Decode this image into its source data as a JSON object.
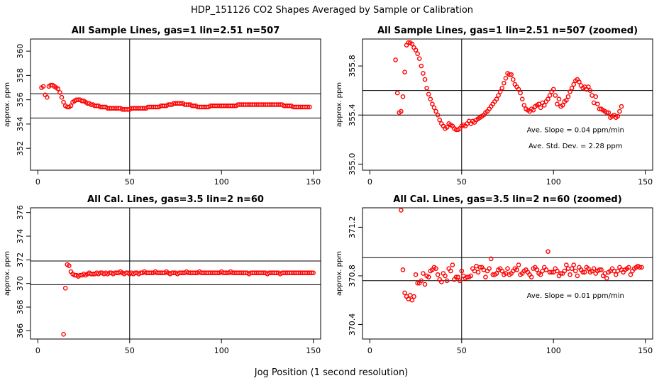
{
  "figure": {
    "title": "HDP_151126  CO2 Shapes Averaged by Sample or Calibration",
    "xlabel": "Jog Position (1 second resolution)"
  },
  "colors": {
    "points": "#ff0000",
    "lines": "#000000",
    "frame": "#000000"
  },
  "chart_data": [
    {
      "type": "scatter",
      "title": "All Sample Lines, gas=1 lin=2.51 n=507",
      "xlabel": "",
      "ylabel": "approx. ppm",
      "xlim": [
        -4,
        154
      ],
      "ylim": [
        350.2,
        361.0
      ],
      "xticks": [
        0,
        50,
        100,
        150
      ],
      "yticks": [
        352,
        354,
        356,
        358,
        360
      ],
      "ytick_labels": [
        "352",
        "354",
        "356",
        "358",
        "360"
      ],
      "hlines": [
        356.5,
        354.5
      ],
      "vline": 50,
      "annotations": [],
      "points_x": [
        2,
        3,
        4,
        5,
        6,
        7,
        8,
        9,
        10,
        11,
        12,
        13,
        14,
        15,
        16,
        17,
        18,
        19,
        20,
        21,
        22,
        23,
        24,
        25,
        26,
        27,
        28,
        29,
        30,
        31,
        32,
        33,
        34,
        35,
        36,
        37,
        38,
        39,
        40,
        41,
        42,
        43,
        44,
        45,
        46,
        47,
        48,
        49,
        50,
        51,
        52,
        53,
        54,
        55,
        56,
        57,
        58,
        59,
        60,
        61,
        62,
        63,
        64,
        65,
        66,
        67,
        68,
        69,
        70,
        71,
        72,
        73,
        74,
        75,
        76,
        77,
        78,
        79,
        80,
        81,
        82,
        83,
        84,
        85,
        86,
        87,
        88,
        89,
        90,
        91,
        92,
        93,
        94,
        95,
        96,
        97,
        98,
        99,
        100,
        101,
        102,
        103,
        104,
        105,
        106,
        107,
        108,
        109,
        110,
        111,
        112,
        113,
        114,
        115,
        116,
        117,
        118,
        119,
        120,
        121,
        122,
        123,
        124,
        125,
        126,
        127,
        128,
        129,
        130,
        131,
        132,
        133,
        134,
        135,
        136,
        137,
        138,
        139,
        140,
        141,
        142,
        143,
        144,
        145,
        146,
        147,
        148,
        149,
        150
      ],
      "points_y": [
        357.0,
        357.1,
        356.4,
        356.2,
        357.1,
        357.2,
        357.2,
        357.1,
        357.0,
        356.9,
        356.6,
        356.2,
        355.8,
        355.5,
        355.4,
        355.4,
        355.5,
        355.8,
        355.9,
        356.0,
        356.0,
        356.0,
        355.9,
        355.9,
        355.8,
        355.7,
        355.7,
        355.6,
        355.6,
        355.5,
        355.5,
        355.5,
        355.4,
        355.4,
        355.4,
        355.4,
        355.3,
        355.3,
        355.3,
        355.3,
        355.3,
        355.3,
        355.3,
        355.3,
        355.2,
        355.2,
        355.2,
        355.2,
        355.2,
        355.3,
        355.3,
        355.3,
        355.3,
        355.3,
        355.3,
        355.3,
        355.3,
        355.3,
        355.4,
        355.4,
        355.4,
        355.4,
        355.4,
        355.4,
        355.4,
        355.5,
        355.5,
        355.5,
        355.5,
        355.6,
        355.6,
        355.6,
        355.7,
        355.7,
        355.7,
        355.7,
        355.7,
        355.7,
        355.6,
        355.6,
        355.6,
        355.6,
        355.5,
        355.5,
        355.5,
        355.4,
        355.4,
        355.4,
        355.4,
        355.4,
        355.4,
        355.4,
        355.5,
        355.5,
        355.5,
        355.5,
        355.5,
        355.5,
        355.5,
        355.5,
        355.5,
        355.5,
        355.5,
        355.5,
        355.5,
        355.5,
        355.5,
        355.6,
        355.6,
        355.6,
        355.6,
        355.6,
        355.6,
        355.6,
        355.6,
        355.6,
        355.6,
        355.6,
        355.6,
        355.6,
        355.6,
        355.6,
        355.6,
        355.6,
        355.6,
        355.6,
        355.6,
        355.6,
        355.6,
        355.6,
        355.6,
        355.6,
        355.5,
        355.5,
        355.5,
        355.5,
        355.5,
        355.4,
        355.4,
        355.4,
        355.4,
        355.4,
        355.4,
        355.4,
        355.4,
        355.4,
        355.4
      ]
    },
    {
      "type": "scatter",
      "title": "All Sample Lines, gas=1 lin=2.51 n=507 (zoomed)",
      "xlabel": "",
      "ylabel": "approx. ppm",
      "xlim": [
        -4,
        154
      ],
      "ylim": [
        354.95,
        356.02
      ],
      "xticks": [
        0,
        50,
        100,
        150
      ],
      "yticks": [
        355.0,
        355.4,
        355.8
      ],
      "ytick_labels": [
        "355.0",
        "355.4",
        "355.8"
      ],
      "hlines": [
        355.6,
        355.4
      ],
      "vline": 50,
      "annotations": [
        {
          "text": "Ave. Slope =  0.04  ppm/min",
          "x": 112,
          "y": 355.26
        },
        {
          "text": "Ave. Std. Dev. =  2.28  ppm",
          "x": 112,
          "y": 355.13
        }
      ],
      "points_x": [
        14,
        15,
        16,
        17,
        18,
        19,
        20,
        21,
        22,
        23,
        24,
        25,
        26,
        27,
        28,
        29,
        30,
        31,
        32,
        33,
        34,
        35,
        36,
        37,
        38,
        39,
        40,
        41,
        42,
        43,
        44,
        45,
        46,
        47,
        48,
        49,
        50,
        51,
        52,
        53,
        54,
        55,
        56,
        57,
        58,
        59,
        60,
        61,
        62,
        63,
        64,
        65,
        66,
        67,
        68,
        69,
        70,
        71,
        72,
        73,
        74,
        75,
        76,
        77,
        78,
        79,
        80,
        81,
        82,
        83,
        84,
        85,
        86,
        87,
        88,
        89,
        90,
        91,
        92,
        93,
        94,
        95,
        96,
        97,
        98,
        99,
        100,
        101,
        102,
        103,
        104,
        105,
        106,
        107,
        108,
        109,
        110,
        111,
        112,
        113,
        114,
        115,
        116,
        117,
        118,
        119,
        120,
        121,
        122,
        123,
        124,
        125,
        126,
        127,
        128,
        129,
        130,
        131,
        132,
        133,
        134,
        135,
        136,
        137,
        138,
        139,
        140,
        141,
        142,
        143,
        144,
        145,
        146,
        147,
        148,
        149,
        150
      ],
      "points_y": [
        355.85,
        355.58,
        355.42,
        355.43,
        355.55,
        355.75,
        355.97,
        355.99,
        355.99,
        355.98,
        355.95,
        355.93,
        355.9,
        355.86,
        355.8,
        355.74,
        355.69,
        355.62,
        355.57,
        355.53,
        355.49,
        355.46,
        355.43,
        355.4,
        355.36,
        355.33,
        355.31,
        355.29,
        355.3,
        355.33,
        355.32,
        355.31,
        355.29,
        355.28,
        355.28,
        355.29,
        355.31,
        355.32,
        355.31,
        355.33,
        355.35,
        355.33,
        355.35,
        355.34,
        355.36,
        355.37,
        355.38,
        355.39,
        355.4,
        355.42,
        355.43,
        355.45,
        355.47,
        355.49,
        355.51,
        355.53,
        355.56,
        355.59,
        355.62,
        355.66,
        355.7,
        355.74,
        355.73,
        355.73,
        355.69,
        355.65,
        355.63,
        355.61,
        355.58,
        355.53,
        355.48,
        355.45,
        355.44,
        355.43,
        355.45,
        355.44,
        355.47,
        355.48,
        355.49,
        355.46,
        355.5,
        355.48,
        355.51,
        355.53,
        355.56,
        355.59,
        355.61,
        355.56,
        355.49,
        355.53,
        355.47,
        355.48,
        355.51,
        355.52,
        355.55,
        355.59,
        355.62,
        355.65,
        355.68,
        355.69,
        355.67,
        355.64,
        355.62,
        355.63,
        355.61,
        355.63,
        355.6,
        355.56,
        355.5,
        355.55,
        355.49,
        355.45,
        355.45,
        355.44,
        355.43,
        355.42,
        355.42,
        355.38,
        355.39,
        355.4,
        355.38,
        355.39,
        355.43,
        355.47
      ]
    },
    {
      "type": "scatter",
      "title": "All Cal. Lines, gas=3.5 lin=2 n=60",
      "xlabel": "",
      "ylabel": "approx. ppm",
      "xlim": [
        -4,
        154
      ],
      "ylim": [
        365.3,
        376.4
      ],
      "xticks": [
        0,
        50,
        100,
        150
      ],
      "yticks": [
        366,
        368,
        370,
        372,
        374,
        376
      ],
      "ytick_labels": [
        "366",
        "368",
        "370",
        "372",
        "374",
        "376"
      ],
      "hlines": [
        371.9,
        369.9
      ],
      "vline": 50,
      "annotations": [],
      "points_x": [
        14,
        15,
        16,
        17,
        18,
        19,
        20,
        21,
        22,
        23,
        24,
        25,
        26,
        27,
        28,
        29,
        30,
        31,
        32,
        33,
        34,
        35,
        36,
        37,
        38,
        39,
        40,
        41,
        42,
        43,
        44,
        45,
        46,
        47,
        48,
        49,
        50,
        51,
        52,
        53,
        54,
        55,
        56,
        57,
        58,
        59,
        60,
        61,
        62,
        63,
        64,
        65,
        66,
        67,
        68,
        69,
        70,
        71,
        72,
        73,
        74,
        75,
        76,
        77,
        78,
        79,
        80,
        81,
        82,
        83,
        84,
        85,
        86,
        87,
        88,
        89,
        90,
        91,
        92,
        93,
        94,
        95,
        96,
        97,
        98,
        99,
        100,
        101,
        102,
        103,
        104,
        105,
        106,
        107,
        108,
        109,
        110,
        111,
        112,
        113,
        114,
        115,
        116,
        117,
        118,
        119,
        120,
        121,
        122,
        123,
        124,
        125,
        126,
        127,
        128,
        129,
        130,
        131,
        132,
        133,
        134,
        135,
        136,
        137,
        138,
        139,
        140,
        141,
        142,
        143,
        144,
        145,
        146,
        147,
        148,
        149,
        150
      ],
      "points_y": [
        365.7,
        369.6,
        371.6,
        371.5,
        371.0,
        370.8,
        370.7,
        370.7,
        370.6,
        370.7,
        370.7,
        370.8,
        370.7,
        370.8,
        370.9,
        370.8,
        370.8,
        370.8,
        370.9,
        370.8,
        370.9,
        370.9,
        370.8,
        370.9,
        370.8,
        370.9,
        370.9,
        370.8,
        370.9,
        370.9,
        370.9,
        371.0,
        370.9,
        370.8,
        370.9,
        370.9,
        370.8,
        370.9,
        370.8,
        370.9,
        370.9,
        370.8,
        370.9,
        370.9,
        371.0,
        370.9,
        370.9,
        370.9,
        370.9,
        370.9,
        371.0,
        370.9,
        370.9,
        370.9,
        370.9,
        370.9,
        371.0,
        370.9,
        370.8,
        370.9,
        370.9,
        370.9,
        370.8,
        370.9,
        370.9,
        370.9,
        370.9,
        371.0,
        370.9,
        370.9,
        370.9,
        370.9,
        370.9,
        370.9,
        371.0,
        370.9,
        370.9,
        370.9,
        370.9,
        370.9,
        370.9,
        370.9,
        370.9,
        370.9,
        370.9,
        370.9,
        371.0,
        370.9,
        370.9,
        370.9,
        370.9,
        371.0,
        370.9,
        370.9,
        370.9,
        370.9,
        370.9,
        370.9,
        370.9,
        370.9,
        370.9,
        370.8,
        370.9,
        370.9,
        370.9,
        370.9,
        370.9,
        370.9,
        370.9,
        370.9,
        370.9,
        370.8,
        370.9,
        370.9,
        370.9,
        370.9,
        370.9,
        370.9,
        370.8,
        370.9,
        370.9,
        370.9,
        370.9,
        370.9,
        370.9,
        370.9,
        370.9,
        370.9,
        370.9,
        370.9,
        370.9,
        370.9,
        370.9,
        370.9,
        370.9,
        370.9,
        370.9
      ]
    },
    {
      "type": "scatter",
      "title": "All Cal. Lines, gas=3.5 lin=2 n=60 (zoomed)",
      "xlabel": "",
      "ylabel": "approx. ppm",
      "xlim": [
        -4,
        154
      ],
      "ylim": [
        370.28,
        371.36
      ],
      "xticks": [
        0,
        50,
        100,
        150
      ],
      "yticks": [
        370.4,
        370.8,
        371.2
      ],
      "ytick_labels": [
        "370.4",
        "370.8",
        "371.2"
      ],
      "hlines": [
        370.95,
        370.76
      ],
      "vline": 50,
      "annotations": [
        {
          "text": "Ave. Slope =  0.01  ppm/min",
          "x": 112,
          "y": 370.62
        }
      ],
      "points_x": [
        17,
        18,
        19,
        20,
        21,
        22,
        23,
        24,
        25,
        26,
        27,
        28,
        29,
        30,
        31,
        32,
        33,
        34,
        35,
        36,
        37,
        38,
        39,
        40,
        41,
        42,
        43,
        44,
        45,
        46,
        47,
        48,
        49,
        50,
        51,
        52,
        53,
        54,
        55,
        56,
        57,
        58,
        59,
        60,
        61,
        62,
        63,
        64,
        65,
        66,
        67,
        68,
        69,
        70,
        71,
        72,
        73,
        74,
        75,
        76,
        77,
        78,
        79,
        80,
        81,
        82,
        83,
        84,
        85,
        86,
        87,
        88,
        89,
        90,
        91,
        92,
        93,
        94,
        95,
        96,
        97,
        98,
        99,
        100,
        101,
        102,
        103,
        104,
        105,
        106,
        107,
        108,
        109,
        110,
        111,
        112,
        113,
        114,
        115,
        116,
        117,
        118,
        119,
        120,
        121,
        122,
        123,
        124,
        125,
        126,
        127,
        128,
        129,
        130,
        131,
        132,
        133,
        134,
        135,
        136,
        137,
        138,
        139,
        140,
        141,
        142,
        143,
        144,
        145,
        146,
        147,
        148,
        149,
        150
      ],
      "points_y": [
        371.34,
        370.85,
        370.66,
        370.63,
        370.61,
        370.64,
        370.6,
        370.63,
        370.81,
        370.74,
        370.74,
        370.76,
        370.82,
        370.73,
        370.8,
        370.79,
        370.84,
        370.85,
        370.87,
        370.86,
        370.81,
        370.77,
        370.75,
        370.82,
        370.8,
        370.76,
        370.86,
        370.84,
        370.89,
        370.77,
        370.79,
        370.79,
        370.76,
        370.84,
        370.8,
        370.78,
        370.79,
        370.79,
        370.8,
        370.86,
        370.84,
        370.88,
        370.83,
        370.87,
        370.87,
        370.85,
        370.79,
        370.84,
        370.86,
        370.94,
        370.81,
        370.81,
        370.82,
        370.85,
        370.86,
        370.84,
        370.81,
        370.82,
        370.86,
        370.81,
        370.82,
        370.84,
        370.86,
        370.85,
        370.89,
        370.81,
        370.82,
        370.84,
        370.85,
        370.83,
        370.81,
        370.79,
        370.86,
        370.87,
        370.85,
        370.82,
        370.81,
        370.84,
        370.87,
        370.85,
        371.0,
        370.83,
        370.83,
        370.83,
        370.86,
        370.84,
        370.8,
        370.82,
        370.82,
        370.84,
        370.89,
        370.86,
        370.81,
        370.86,
        370.89,
        370.84,
        370.8,
        370.87,
        370.85,
        370.83,
        370.83,
        370.87,
        370.86,
        370.83,
        370.84,
        370.86,
        370.82,
        370.84,
        370.85,
        370.85,
        370.8,
        370.82,
        370.78,
        370.83,
        370.84,
        370.86,
        370.84,
        370.81,
        370.84,
        370.87,
        370.85,
        370.83,
        370.85,
        370.86,
        370.87,
        370.81,
        370.84,
        370.86,
        370.87,
        370.88,
        370.87,
        370.87
      ]
    }
  ]
}
